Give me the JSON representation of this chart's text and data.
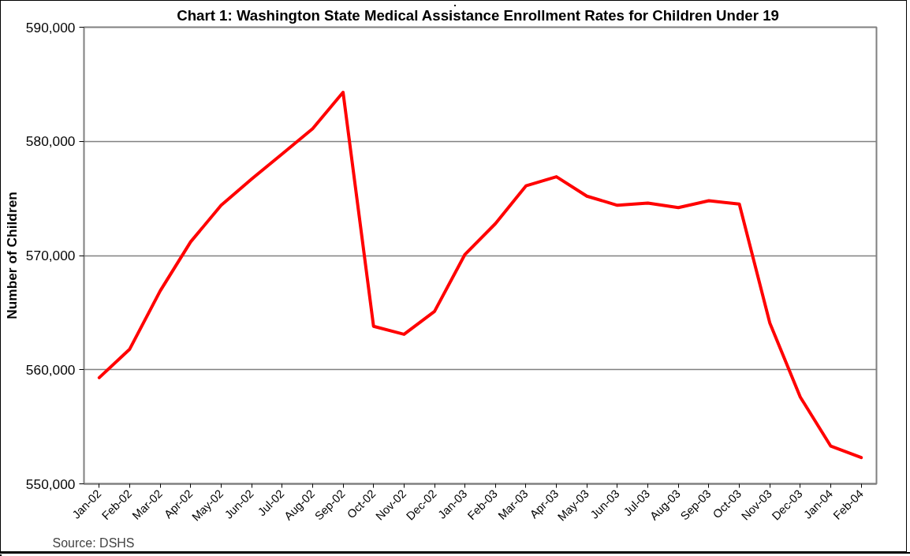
{
  "chart_data": {
    "type": "line",
    "title": "Chart 1:  Washington State Medical Assistance Enrollment Rates for Children Under 19",
    "ylabel": "Number of Children",
    "categories": [
      "Jan-02",
      "Feb-02",
      "Mar-02",
      "Apr-02",
      "May-02",
      "Jun-02",
      "Jul-02",
      "Aug-02",
      "Sep-02",
      "Oct-02",
      "Nov-02",
      "Dec-02",
      "Jan-03",
      "Feb-03",
      "Mar-03",
      "Apr-03",
      "May-03",
      "Jun-03",
      "Jul-03",
      "Aug-03",
      "Sep-03",
      "Oct-03",
      "Nov-03",
      "Dec-03",
      "Jan-04",
      "Feb-04"
    ],
    "series": [
      {
        "color": "#ff0000",
        "values": [
          559300,
          561800,
          566900,
          571200,
          574400,
          576700,
          578900,
          581100,
          584300,
          563800,
          563100,
          565100,
          570100,
          572800,
          576100,
          576900,
          575200,
          574400,
          574600,
          574200,
          574800,
          574500,
          564100,
          557600,
          553300,
          552300
        ]
      }
    ],
    "ylim": [
      550000,
      590000
    ],
    "yticks": [
      {
        "value": 550000,
        "label": "550,000"
      },
      {
        "value": 560000,
        "label": "560,000"
      },
      {
        "value": 570000,
        "label": "570,000"
      },
      {
        "value": 580000,
        "label": "580,000"
      },
      {
        "value": 590000,
        "label": "590,000"
      }
    ],
    "grid": "y",
    "marker": "none",
    "line_style": "solid",
    "annotations": [
      "Source: DSHS"
    ]
  }
}
